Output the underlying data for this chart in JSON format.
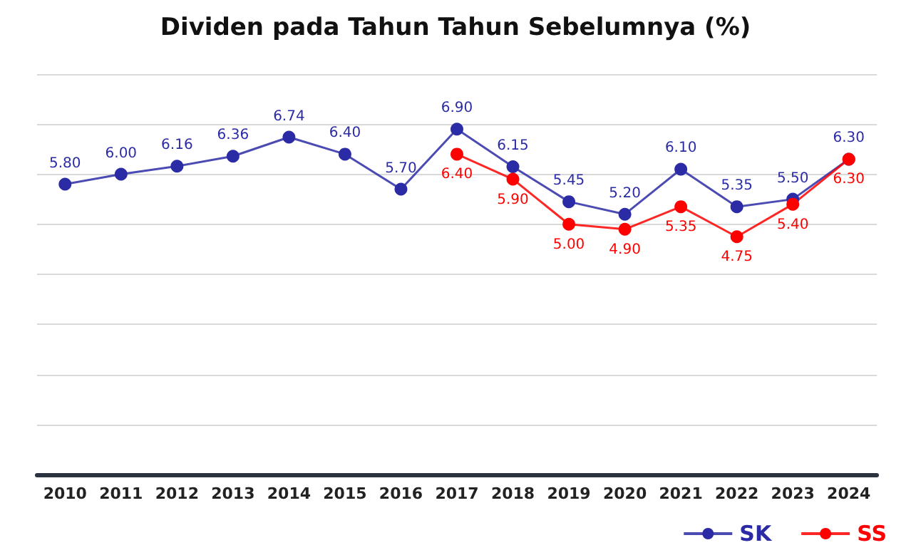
{
  "chart_data": {
    "type": "line",
    "title": "Dividen pada Tahun Tahun Sebelumnya (%)",
    "categories": [
      "2010",
      "2011",
      "2012",
      "2013",
      "2014",
      "2015",
      "2016",
      "2017",
      "2018",
      "2019",
      "2020",
      "2021",
      "2022",
      "2023",
      "2024"
    ],
    "series": [
      {
        "name": "SK",
        "color": "#2b2ba6",
        "values": [
          5.8,
          6.0,
          6.16,
          6.36,
          6.74,
          6.4,
          5.7,
          6.9,
          6.15,
          5.45,
          5.2,
          6.1,
          5.35,
          5.5,
          6.3
        ],
        "value_labels": [
          "5.80",
          "6.00",
          "6.16",
          "6.36",
          "6.74",
          "6.40",
          "5.70",
          "6.90",
          "6.15",
          "5.45",
          "5.20",
          "6.10",
          "5.35",
          "5.50",
          "6.30"
        ]
      },
      {
        "name": "SS",
        "color": "#ff0000",
        "values": [
          null,
          null,
          null,
          null,
          null,
          null,
          null,
          6.4,
          5.9,
          5.0,
          4.9,
          5.35,
          4.75,
          5.4,
          6.3
        ],
        "value_labels": [
          null,
          null,
          null,
          null,
          null,
          null,
          null,
          "6.40",
          "5.90",
          "5.00",
          "4.90",
          "5.35",
          "4.75",
          "5.40",
          "6.30"
        ]
      }
    ],
    "ylim": [
      0,
      8
    ],
    "yticks": [
      {
        "value": 0,
        "label": null
      },
      {
        "value": 1,
        "label": null
      },
      {
        "value": 2,
        "label": null
      },
      {
        "value": 3,
        "label": null
      },
      {
        "value": 4,
        "label": null
      },
      {
        "value": 5,
        "label": null
      },
      {
        "value": 6,
        "label": null
      },
      {
        "value": 7,
        "label": null
      },
      {
        "value": 8,
        "label": null
      }
    ],
    "tick_labels": "x",
    "grid": "y",
    "legend": "bottom right",
    "marker": "circle",
    "line_style": "solid"
  }
}
